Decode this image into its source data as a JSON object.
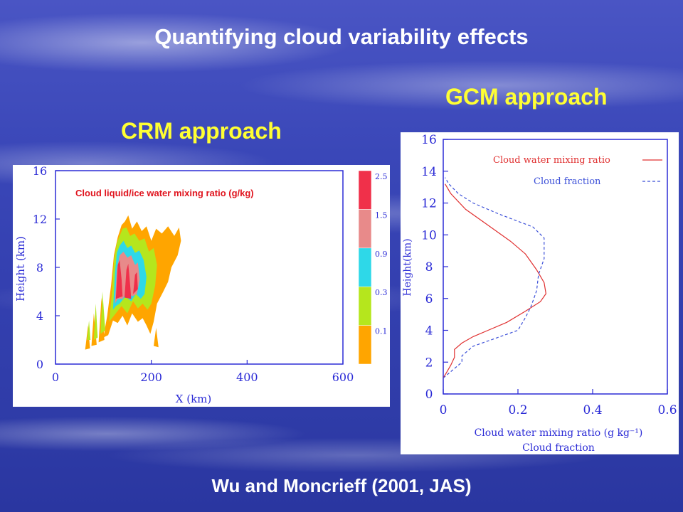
{
  "slide": {
    "title": "Quantifying cloud variability effects",
    "crm_heading": "CRM approach",
    "gcm_heading": "GCM approach",
    "footer": "Wu and Moncrieff (2001, JAS)"
  },
  "colors": {
    "heading": "#ffff33",
    "crm_axis": "#2b2bd6",
    "gcm_axis": "#2b2bd6",
    "cloud_water_line": "#e03030",
    "cloud_fraction_line": "#3b4fd8"
  },
  "chart_data": [
    {
      "type": "heatmap",
      "title": "Cloud liquid/ice water mixing ratio (g/kg)",
      "xlabel": "X (km)",
      "ylabel": "Height (km)",
      "xlim": [
        0,
        600
      ],
      "ylim": [
        0,
        16
      ],
      "xticks": [
        "0",
        "200",
        "400",
        "600"
      ],
      "yticks": [
        "0",
        "4",
        "8",
        "12",
        "16"
      ],
      "colorbar": {
        "levels": [
          "0.1",
          "0.3",
          "0.9",
          "1.5",
          "2.5"
        ],
        "colors": [
          "#ffa500",
          "#b5e61d",
          "#2ed8e8",
          "#e88a8a",
          "#f0304a"
        ]
      }
    },
    {
      "type": "line",
      "xlabel": "Cloud water mixing ratio (g kg⁻¹)",
      "xlabel2": "Cloud fraction",
      "ylabel": "Height(km)",
      "xlim": [
        0,
        0.6
      ],
      "ylim": [
        0,
        16
      ],
      "xticks": [
        "0",
        "0.2",
        "0.4",
        "0.6"
      ],
      "yticks": [
        "0",
        "2",
        "4",
        "6",
        "8",
        "10",
        "12",
        "14",
        "16"
      ],
      "legend_position": "top-right",
      "series": [
        {
          "name": "Cloud water mixing ratio",
          "style": "solid",
          "x": [
            0.0,
            0.01,
            0.02,
            0.03,
            0.03,
            0.05,
            0.08,
            0.12,
            0.17,
            0.22,
            0.26,
            0.275,
            0.27,
            0.25,
            0.22,
            0.18,
            0.12,
            0.06,
            0.02,
            0.005
          ],
          "y": [
            1.0,
            1.4,
            1.8,
            2.3,
            2.8,
            3.2,
            3.6,
            4.0,
            4.5,
            5.2,
            5.8,
            6.3,
            7.0,
            7.8,
            8.8,
            9.6,
            10.6,
            11.6,
            12.6,
            13.2
          ]
        },
        {
          "name": "Cloud fraction",
          "style": "dashed",
          "x": [
            0.0,
            0.03,
            0.05,
            0.05,
            0.08,
            0.14,
            0.2,
            0.22,
            0.235,
            0.25,
            0.255,
            0.27,
            0.27,
            0.24,
            0.15,
            0.08,
            0.04,
            0.015,
            0.005
          ],
          "y": [
            1.0,
            1.6,
            2.0,
            2.4,
            3.0,
            3.5,
            4.0,
            4.8,
            5.5,
            6.5,
            7.5,
            8.5,
            9.8,
            10.5,
            11.3,
            12.0,
            12.6,
            13.2,
            13.6
          ]
        }
      ]
    }
  ]
}
